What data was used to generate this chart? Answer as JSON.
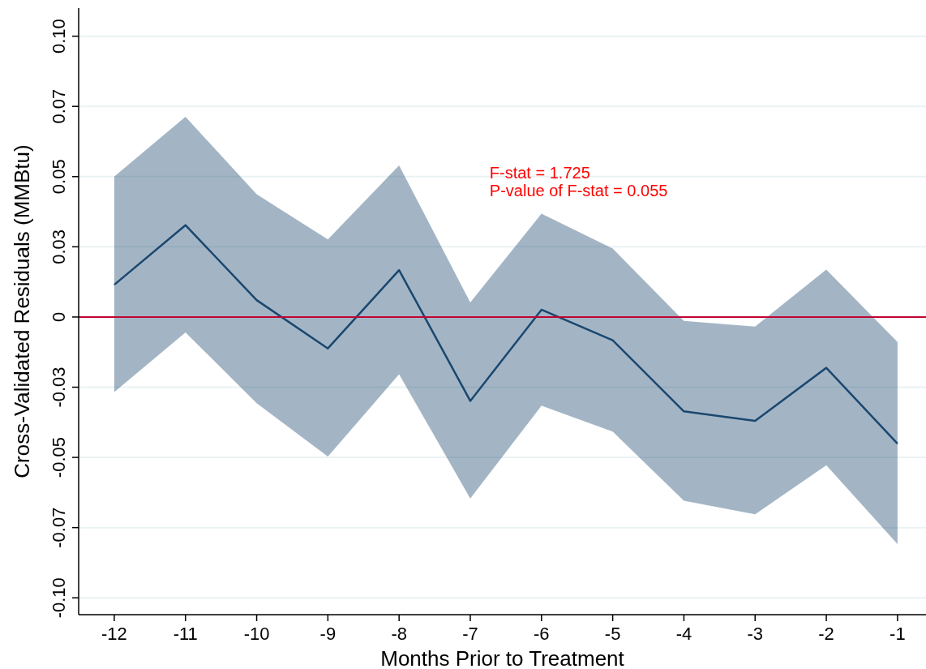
{
  "chart_data": {
    "type": "line",
    "xlabel": "Months Prior to Treatment",
    "ylabel": "Cross-Validated Residuals (MMBtu)",
    "x": [
      -12,
      -11,
      -10,
      -9,
      -8,
      -7,
      -6,
      -5,
      -4,
      -3,
      -2,
      -1
    ],
    "series": [
      {
        "color": "#1a476f",
        "values": [
          0.0115,
          0.0327,
          0.006,
          -0.0112,
          0.0167,
          -0.0299,
          0.0026,
          -0.0083,
          -0.0336,
          -0.037,
          -0.0181,
          -0.0451
        ],
        "lower": [
          -0.0267,
          -0.0055,
          -0.0307,
          -0.0497,
          -0.0204,
          -0.0646,
          -0.0316,
          -0.0408,
          -0.0654,
          -0.0703,
          -0.0528,
          -0.0809
        ],
        "upper": [
          0.05,
          0.0713,
          0.0437,
          0.0276,
          0.054,
          0.0052,
          0.0368,
          0.0244,
          -0.0014,
          -0.0034,
          0.0169,
          -0.0089
        ]
      }
    ],
    "xlim": [
      -12.5,
      -0.6
    ],
    "xticks": [
      -12,
      -11,
      -10,
      -9,
      -8,
      -7,
      -6,
      -5,
      -4,
      -3,
      -2,
      -1
    ],
    "ylim": [
      -0.106,
      0.11
    ],
    "yticks": [
      {
        "value": -0.1,
        "label": "-0.10"
      },
      {
        "value": -0.075,
        "label": "-0.07"
      },
      {
        "value": -0.05,
        "label": "-0.05"
      },
      {
        "value": -0.025,
        "label": "-0.03"
      },
      0,
      {
        "value": 0.025,
        "label": "0.03"
      },
      {
        "value": 0.05,
        "label": "0.05"
      },
      {
        "value": 0.075,
        "label": "0.07"
      },
      {
        "value": 0.1,
        "label": "0.10"
      }
    ],
    "grid": "y",
    "marker": "none",
    "line_style": "solid",
    "ref_lines": [
      {
        "axis": "y",
        "value": 0,
        "color": "#c10534"
      }
    ],
    "annotations": [
      "F-stat = 1.725",
      "P-value of F-stat = 0.055"
    ]
  }
}
